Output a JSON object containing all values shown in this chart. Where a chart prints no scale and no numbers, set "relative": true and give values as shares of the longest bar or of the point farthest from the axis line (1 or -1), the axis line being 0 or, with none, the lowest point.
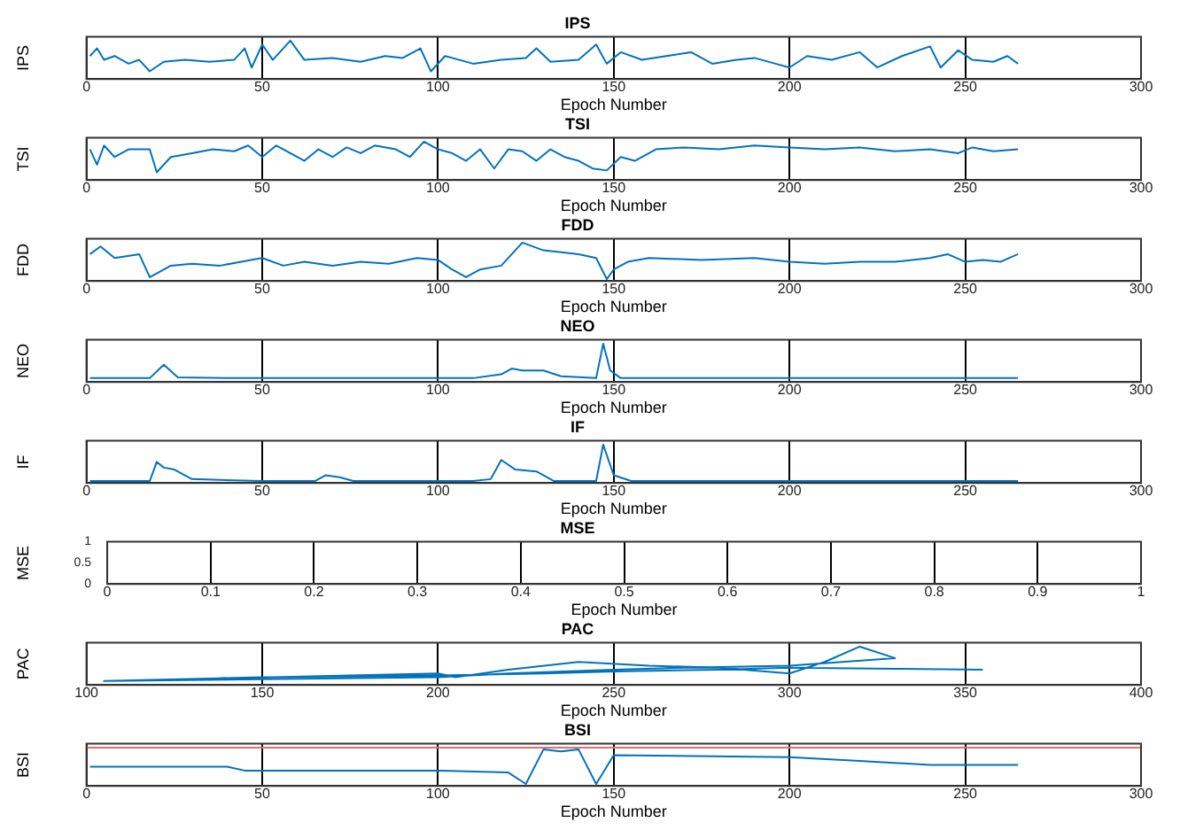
{
  "chart_data": [
    {
      "type": "line",
      "title": "IPS",
      "xlabel": "Epoch Number",
      "ylabel": "IPS",
      "relative": true,
      "color": "#0072bd",
      "xlim": [
        0,
        300
      ],
      "xticks": [
        0,
        50,
        100,
        150,
        200,
        250,
        300
      ],
      "grid": "x",
      "x": [
        1,
        3,
        5,
        8,
        12,
        15,
        18,
        22,
        28,
        35,
        42,
        45,
        47,
        50,
        53,
        58,
        62,
        70,
        78,
        85,
        90,
        95,
        98,
        102,
        110,
        118,
        125,
        128,
        132,
        140,
        145,
        148,
        152,
        158,
        165,
        172,
        178,
        185,
        190,
        196,
        200,
        205,
        212,
        220,
        225,
        232,
        240,
        243,
        248,
        252,
        258,
        262,
        265
      ],
      "values": [
        0.6,
        0.8,
        0.5,
        0.6,
        0.4,
        0.5,
        0.2,
        0.45,
        0.5,
        0.45,
        0.5,
        0.8,
        0.3,
        0.9,
        0.5,
        1,
        0.5,
        0.55,
        0.45,
        0.6,
        0.55,
        0.8,
        0.2,
        0.6,
        0.4,
        0.5,
        0.55,
        0.8,
        0.45,
        0.5,
        0.9,
        0.4,
        0.7,
        0.5,
        0.6,
        0.7,
        0.4,
        0.5,
        0.55,
        0.4,
        0.3,
        0.6,
        0.5,
        0.7,
        0.3,
        0.6,
        0.85,
        0.3,
        0.75,
        0.5,
        0.45,
        0.6,
        0.4
      ]
    },
    {
      "type": "line",
      "title": "TSI",
      "xlabel": "Epoch Number",
      "ylabel": "TSI",
      "relative": true,
      "color": "#0072bd",
      "xlim": [
        0,
        300
      ],
      "xticks": [
        0,
        50,
        100,
        150,
        200,
        250,
        300
      ],
      "grid": "x",
      "x": [
        1,
        3,
        5,
        8,
        12,
        18,
        20,
        24,
        30,
        36,
        42,
        46,
        50,
        54,
        58,
        62,
        66,
        70,
        74,
        78,
        82,
        88,
        92,
        96,
        100,
        104,
        108,
        112,
        116,
        120,
        124,
        128,
        132,
        136,
        140,
        144,
        148,
        152,
        156,
        162,
        170,
        180,
        190,
        200,
        210,
        220,
        230,
        240,
        248,
        252,
        258,
        265
      ],
      "values": [
        0.8,
        0.4,
        0.9,
        0.6,
        0.8,
        0.8,
        0.2,
        0.6,
        0.7,
        0.8,
        0.75,
        0.9,
        0.6,
        0.9,
        0.7,
        0.5,
        0.8,
        0.6,
        0.85,
        0.7,
        0.9,
        0.8,
        0.6,
        1,
        0.8,
        0.7,
        0.5,
        0.8,
        0.3,
        0.8,
        0.75,
        0.5,
        0.8,
        0.6,
        0.5,
        0.3,
        0.25,
        0.6,
        0.5,
        0.8,
        0.85,
        0.8,
        0.9,
        0.85,
        0.8,
        0.85,
        0.75,
        0.8,
        0.7,
        0.85,
        0.75,
        0.8
      ]
    },
    {
      "type": "line",
      "title": "FDD",
      "xlabel": "Epoch Number",
      "ylabel": "FDD",
      "relative": true,
      "color": "#0072bd",
      "xlim": [
        0,
        300
      ],
      "xticks": [
        0,
        50,
        100,
        150,
        200,
        250,
        300
      ],
      "grid": "x",
      "x": [
        1,
        4,
        8,
        15,
        18,
        20,
        24,
        30,
        38,
        44,
        50,
        56,
        62,
        70,
        78,
        86,
        94,
        100,
        104,
        108,
        112,
        118,
        124,
        130,
        140,
        145,
        148,
        150,
        154,
        160,
        175,
        190,
        200,
        210,
        220,
        230,
        240,
        245,
        250,
        255,
        260,
        265
      ],
      "values": [
        0.7,
        0.9,
        0.6,
        0.7,
        0.1,
        0.2,
        0.4,
        0.45,
        0.4,
        0.5,
        0.6,
        0.4,
        0.5,
        0.4,
        0.5,
        0.45,
        0.6,
        0.55,
        0.3,
        0.1,
        0.3,
        0.4,
        1,
        0.8,
        0.7,
        0.6,
        0.05,
        0.3,
        0.5,
        0.6,
        0.55,
        0.6,
        0.5,
        0.45,
        0.5,
        0.5,
        0.6,
        0.7,
        0.5,
        0.55,
        0.5,
        0.7
      ]
    },
    {
      "type": "line",
      "title": "NEO",
      "xlabel": "Epoch Number",
      "ylabel": "NEO",
      "relative": true,
      "color": "#0072bd",
      "xlim": [
        0,
        300
      ],
      "xticks": [
        0,
        50,
        100,
        150,
        200,
        250,
        300
      ],
      "grid": "x",
      "x": [
        1,
        18,
        22,
        26,
        40,
        80,
        110,
        118,
        121,
        124,
        130,
        135,
        145,
        147,
        149,
        152,
        160,
        200,
        265
      ],
      "values": [
        0.1,
        0.1,
        0.45,
        0.12,
        0.1,
        0.1,
        0.1,
        0.2,
        0.35,
        0.3,
        0.3,
        0.15,
        0.1,
        1,
        0.3,
        0.1,
        0.1,
        0.1,
        0.1
      ]
    },
    {
      "type": "line",
      "title": "IF",
      "xlabel": "Epoch Number",
      "ylabel": "IF",
      "relative": true,
      "color": "#0072bd",
      "xlim": [
        0,
        300
      ],
      "xticks": [
        0,
        50,
        100,
        150,
        200,
        250,
        300
      ],
      "grid": "x",
      "x": [
        1,
        18,
        20,
        22,
        25,
        30,
        50,
        65,
        68,
        72,
        76,
        110,
        115,
        118,
        122,
        128,
        133,
        145,
        147,
        150,
        155,
        200,
        265
      ],
      "values": [
        0.05,
        0.05,
        0.55,
        0.4,
        0.35,
        0.1,
        0.05,
        0.05,
        0.2,
        0.15,
        0.05,
        0.05,
        0.1,
        0.6,
        0.35,
        0.3,
        0.05,
        0.05,
        1,
        0.2,
        0.05,
        0.05,
        0.05
      ]
    },
    {
      "type": "line",
      "title": "MSE",
      "xlabel": "Epoch Number",
      "ylabel": "MSE",
      "xlim": [
        0,
        1
      ],
      "xticks": [
        0,
        0.1,
        0.2,
        0.3,
        0.4,
        0.5,
        0.6,
        0.7,
        0.8,
        0.9,
        1
      ],
      "ylim": [
        0,
        1
      ],
      "yticks": [
        0,
        0.5,
        1
      ],
      "grid": "x"
    },
    {
      "type": "line",
      "title": "PAC",
      "xlabel": "Epoch Number",
      "ylabel": "PAC",
      "relative": true,
      "color": "#0072bd",
      "xlim": [
        100,
        400
      ],
      "xticks": [
        100,
        150,
        200,
        250,
        300,
        350,
        400
      ],
      "grid": "x",
      "x": [
        105,
        200,
        205,
        220,
        240,
        260,
        280,
        300,
        310,
        320,
        330,
        315,
        300,
        270,
        250,
        220,
        200,
        150,
        105,
        150,
        200,
        230,
        250,
        280,
        300,
        330,
        355
      ],
      "values": [
        0.1,
        0.3,
        0.2,
        0.4,
        0.6,
        0.5,
        0.45,
        0.3,
        0.6,
        1,
        0.7,
        0.6,
        0.5,
        0.45,
        0.4,
        0.3,
        0.2,
        0.15,
        0.1,
        0.2,
        0.25,
        0.3,
        0.35,
        0.4,
        0.45,
        0.42,
        0.4
      ]
    },
    {
      "type": "line",
      "title": "BSI",
      "xlabel": "Epoch Number",
      "ylabel": "BSI",
      "relative": true,
      "xlim": [
        0,
        300
      ],
      "xticks": [
        0,
        50,
        100,
        150,
        200,
        250,
        300
      ],
      "grid": "x",
      "series": [
        {
          "color": "#0072bd",
          "x": [
            1,
            40,
            45,
            100,
            120,
            125,
            130,
            135,
            140,
            145,
            150,
            200,
            220,
            240,
            265
          ],
          "values": [
            0.5,
            0.5,
            0.4,
            0.4,
            0.35,
            0.05,
            0.95,
            0.9,
            0.95,
            0.05,
            0.8,
            0.75,
            0.65,
            0.55,
            0.55
          ]
        },
        {
          "color": "#e07070",
          "x": [
            0,
            300
          ],
          "values": [
            1,
            1
          ]
        }
      ]
    }
  ]
}
